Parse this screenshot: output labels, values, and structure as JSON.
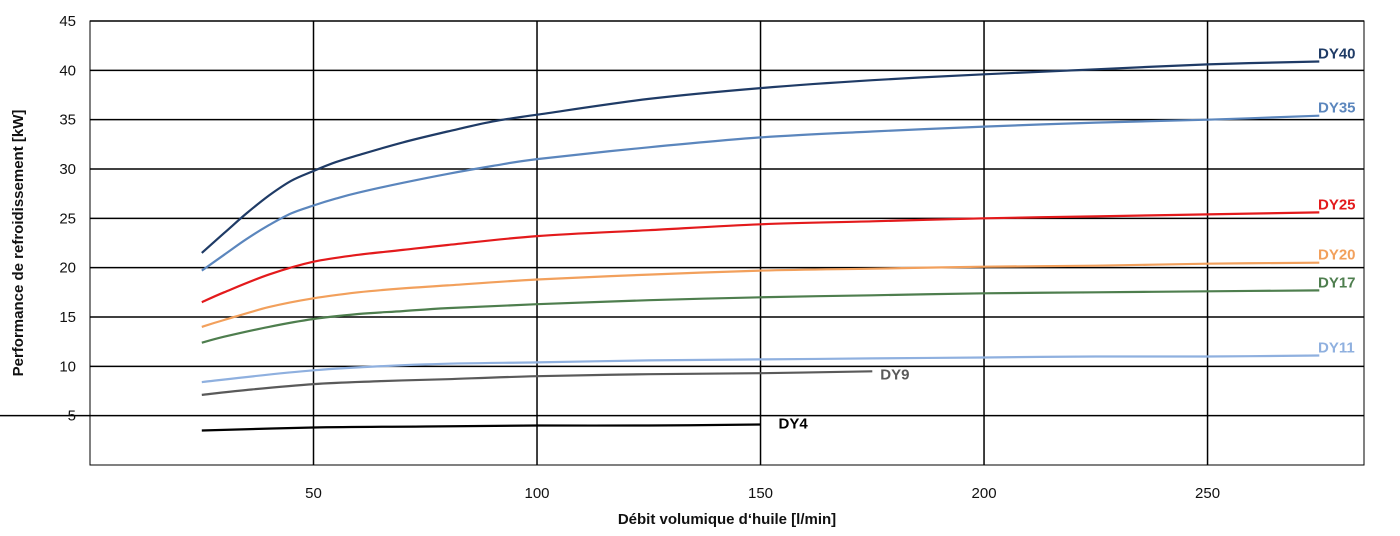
{
  "chart_data": {
    "type": "line",
    "title": "",
    "xlabel": "Débit volumique d‘huile [l/min]",
    "ylabel": "Performance de refroidissement [kW]",
    "xlim": [
      0,
      285
    ],
    "ylim": [
      0,
      45
    ],
    "xticks": [
      50,
      100,
      150,
      200,
      250
    ],
    "yticks": [
      5,
      10,
      15,
      20,
      25,
      30,
      35,
      40,
      45
    ],
    "grid": true,
    "legend": "labels at line ends",
    "series": [
      {
        "name": "DY40",
        "color": "#1f3b66",
        "x": [
          25,
          30,
          35,
          40,
          45,
          50,
          55,
          60,
          70,
          80,
          90,
          100,
          125,
          150,
          175,
          200,
          225,
          250,
          275
        ],
        "y": [
          21.5,
          23.5,
          25.5,
          27.3,
          28.8,
          29.8,
          30.7,
          31.4,
          32.7,
          33.8,
          34.8,
          35.5,
          37.1,
          38.2,
          39.0,
          39.6,
          40.1,
          40.6,
          40.9
        ]
      },
      {
        "name": "DY35",
        "color": "#5b86bd",
        "x": [
          25,
          30,
          35,
          40,
          45,
          50,
          55,
          60,
          70,
          80,
          90,
          100,
          125,
          150,
          175,
          200,
          225,
          250,
          275
        ],
        "y": [
          19.7,
          21.3,
          22.9,
          24.3,
          25.5,
          26.3,
          27.0,
          27.6,
          28.6,
          29.5,
          30.3,
          31.0,
          32.2,
          33.2,
          33.8,
          34.3,
          34.7,
          35.0,
          35.4
        ]
      },
      {
        "name": "DY25",
        "color": "#e31a1c",
        "x": [
          25,
          30,
          40,
          50,
          60,
          70,
          80,
          100,
          125,
          150,
          175,
          200,
          225,
          250,
          275
        ],
        "y": [
          16.5,
          17.5,
          19.3,
          20.6,
          21.3,
          21.8,
          22.3,
          23.2,
          23.8,
          24.4,
          24.7,
          25.0,
          25.2,
          25.4,
          25.6
        ]
      },
      {
        "name": "DY20",
        "color": "#f2a05c",
        "x": [
          25,
          30,
          40,
          50,
          60,
          70,
          80,
          100,
          125,
          150,
          175,
          200,
          225,
          250,
          275
        ],
        "y": [
          14.0,
          14.7,
          16.0,
          16.9,
          17.5,
          17.9,
          18.2,
          18.8,
          19.3,
          19.7,
          19.9,
          20.1,
          20.2,
          20.4,
          20.5
        ]
      },
      {
        "name": "DY17",
        "color": "#4e7e4e",
        "x": [
          25,
          30,
          40,
          50,
          60,
          70,
          80,
          100,
          125,
          150,
          175,
          200,
          225,
          250,
          275
        ],
        "y": [
          12.4,
          13.0,
          14.0,
          14.8,
          15.3,
          15.6,
          15.9,
          16.3,
          16.7,
          17.0,
          17.2,
          17.4,
          17.5,
          17.6,
          17.7
        ]
      },
      {
        "name": "DY11",
        "color": "#8fb0df",
        "x": [
          25,
          50,
          75,
          100,
          125,
          150,
          175,
          200,
          225,
          250,
          275
        ],
        "y": [
          8.4,
          9.6,
          10.2,
          10.4,
          10.6,
          10.7,
          10.8,
          10.9,
          11.0,
          11.0,
          11.1
        ]
      },
      {
        "name": "DY9",
        "color": "#5a5a5a",
        "x": [
          25,
          35,
          50,
          65,
          80,
          100,
          125,
          150,
          175
        ],
        "y": [
          7.1,
          7.6,
          8.2,
          8.5,
          8.7,
          9.0,
          9.2,
          9.3,
          9.5
        ]
      },
      {
        "name": "DY4",
        "color": "#000000",
        "x": [
          25,
          50,
          75,
          100,
          125,
          150
        ],
        "y": [
          3.5,
          3.8,
          3.9,
          4.0,
          4.0,
          4.1
        ]
      }
    ]
  }
}
